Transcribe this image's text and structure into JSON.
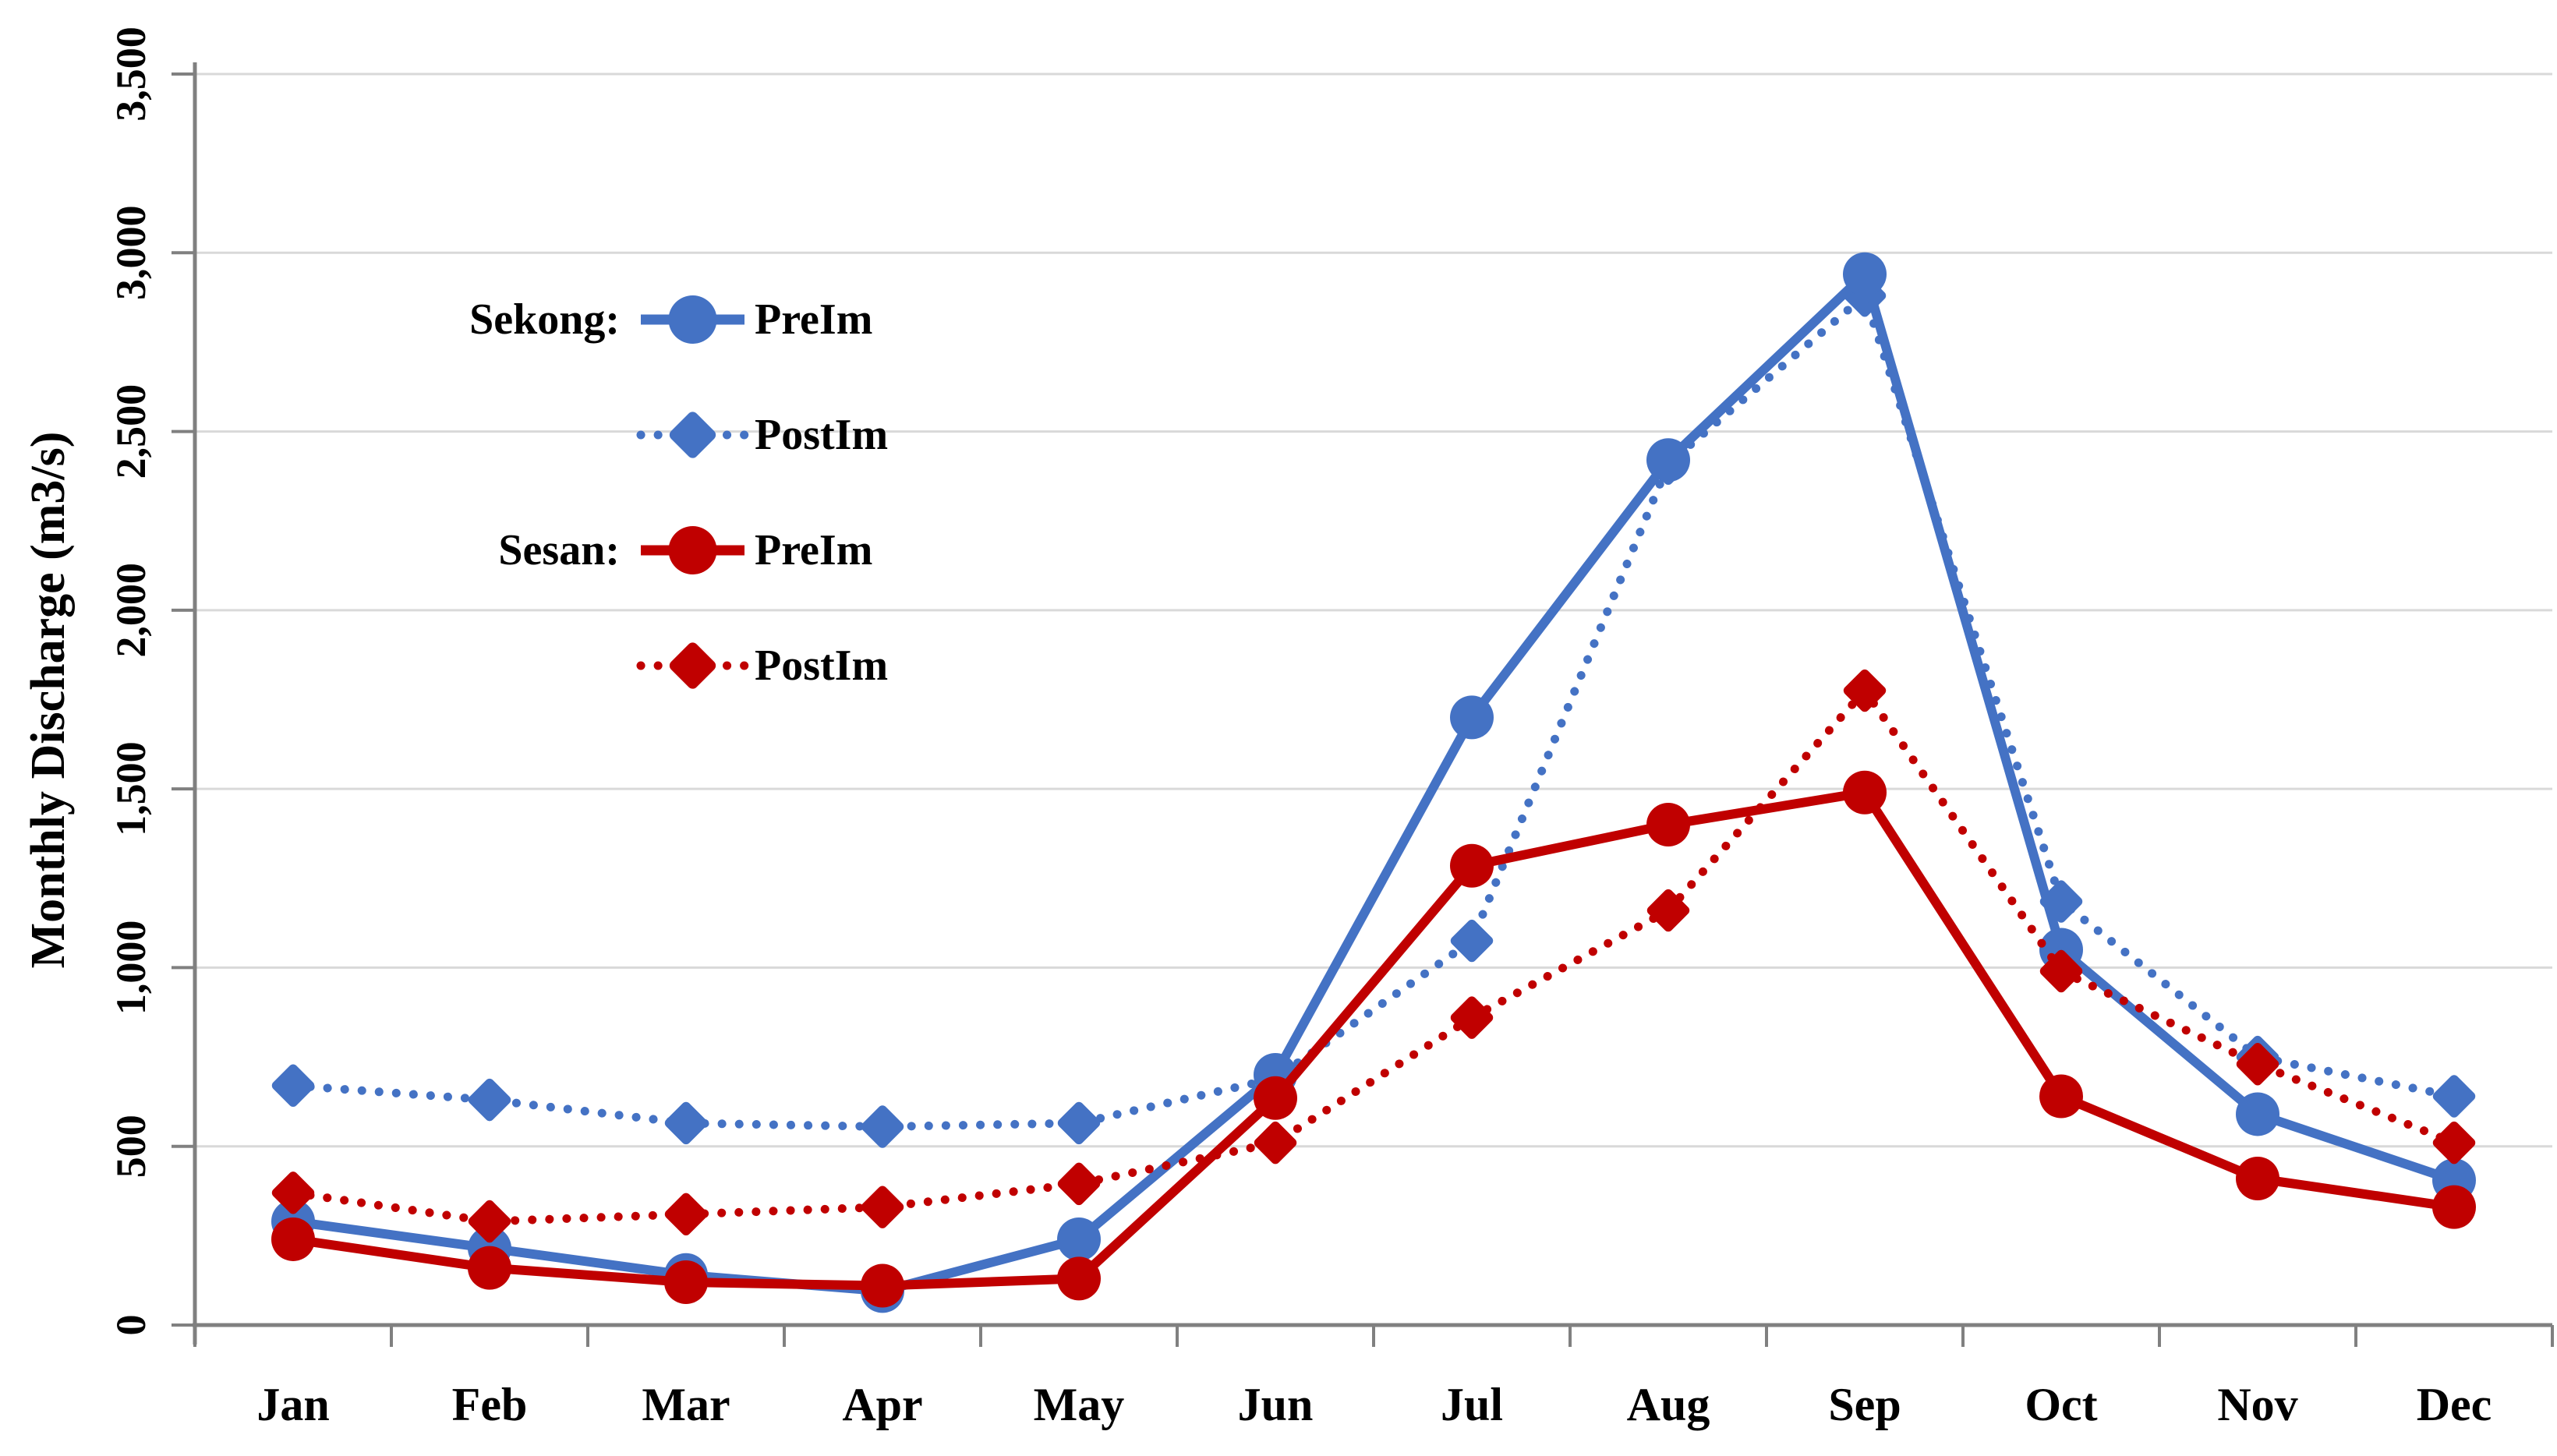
{
  "chart_data": {
    "type": "line",
    "title": "",
    "xlabel": "",
    "ylabel": "Monthly Discharge (m3/s)",
    "categories": [
      "Jan",
      "Feb",
      "Mar",
      "Apr",
      "May",
      "Jun",
      "Jul",
      "Aug",
      "Sep",
      "Oct",
      "Nov",
      "Dec"
    ],
    "y_tick_labels": [
      "0",
      "500",
      "1,000",
      "1,500",
      "2,000",
      "2,500",
      "3,000",
      "3,500"
    ],
    "ylim": [
      0,
      3500
    ],
    "y_step": 500,
    "grid": true,
    "legend_position": "upper-left-inside",
    "series": [
      {
        "name": "PreIm",
        "group_label": "Sekong:",
        "color": "#4472C4",
        "line": "solid",
        "marker": "circle",
        "values": [
          290,
          215,
          140,
          95,
          240,
          700,
          1700,
          2420,
          2940,
          1050,
          590,
          405
        ]
      },
      {
        "name": "PostIm",
        "group_label": "",
        "color": "#4472C4",
        "line": "dotted",
        "marker": "diamond",
        "values": [
          670,
          630,
          565,
          555,
          565,
          690,
          1075,
          2410,
          2880,
          1185,
          750,
          640
        ]
      },
      {
        "name": "PreIm",
        "group_label": "Sesan:",
        "color": "#C00000",
        "line": "solid",
        "marker": "circle",
        "values": [
          240,
          160,
          120,
          110,
          130,
          635,
          1285,
          1400,
          1490,
          640,
          410,
          330
        ]
      },
      {
        "name": "PostIm",
        "group_label": "",
        "color": "#C00000",
        "line": "dotted",
        "marker": "diamond",
        "values": [
          370,
          290,
          310,
          330,
          395,
          510,
          860,
          1160,
          1775,
          990,
          730,
          510
        ]
      }
    ]
  },
  "colors": {
    "sekong_blue": "#4472C4",
    "sesan_red": "#C00000",
    "gridline": "#D9D9D9",
    "axis": "#808080",
    "text": "#000000",
    "background": "#FFFFFF"
  }
}
